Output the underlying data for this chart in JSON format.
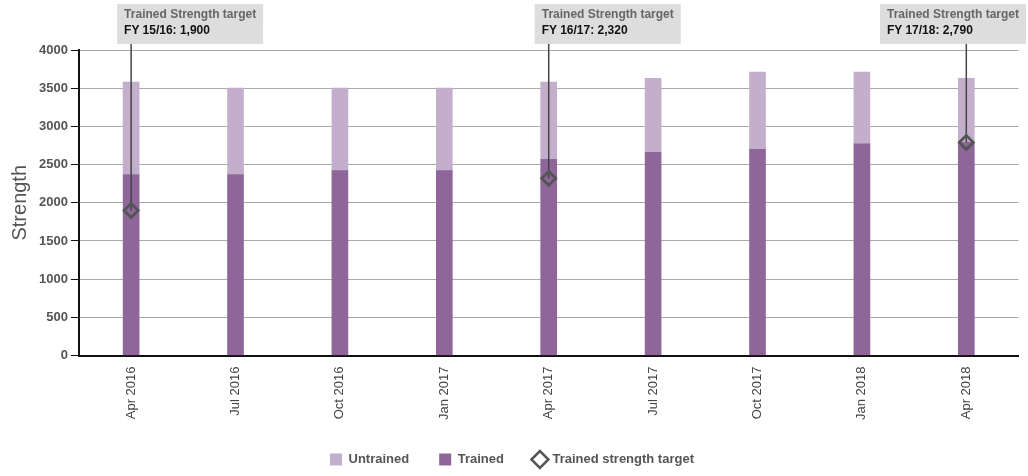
{
  "chart_data": {
    "type": "bar",
    "stacked": true,
    "ylabel": "Strength",
    "categories": [
      "Apr 2016",
      "Jul 2016",
      "Oct 2016",
      "Jan 2017",
      "Apr 2017",
      "Jul 2017",
      "Oct 2017",
      "Jan 2018",
      "Apr 2018"
    ],
    "series": [
      {
        "name": "Trained",
        "color": "#8e6699",
        "values": [
          2370,
          2370,
          2420,
          2420,
          2570,
          2660,
          2700,
          2770,
          2790
        ]
      },
      {
        "name": "Untrained",
        "color": "#c3afcc",
        "values": [
          1210,
          1130,
          1080,
          1080,
          1010,
          970,
          1010,
          940,
          840
        ]
      },
      {
        "name": "Trained strength target",
        "type": "scatter",
        "color": "#555555",
        "x": [
          "Apr 2016",
          "Apr 2017",
          "Apr 2018"
        ],
        "values": [
          1900,
          2320,
          2790
        ]
      }
    ],
    "ylim": [
      0,
      4000
    ],
    "yticks": [
      0,
      500,
      1000,
      1500,
      2000,
      2500,
      3000,
      3500,
      4000
    ],
    "grid": "y",
    "legend": "bottom",
    "marker": "diamond",
    "annotations": [
      {
        "text": "Trained Strength target\nFY 15/16: 1,900",
        "x": "Apr 2016",
        "y": 1900
      },
      {
        "text": "Trained Strength target\nFY 16/17: 2,320",
        "x": "Apr 2017",
        "y": 2320
      },
      {
        "text": "Trained Strength target\nFY 17/18: 2,790",
        "x": "Apr 2018",
        "y": 2790
      }
    ]
  }
}
